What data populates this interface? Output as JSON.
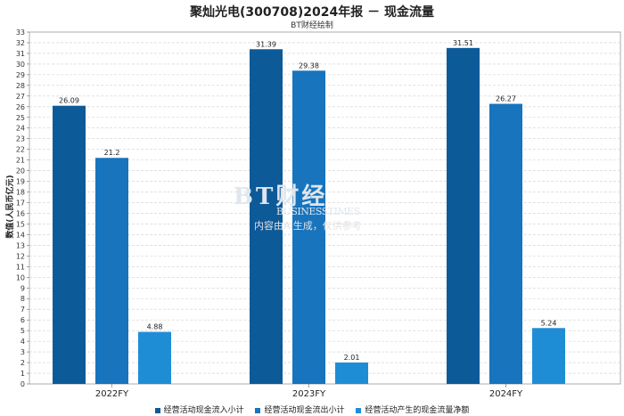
{
  "title": "聚灿光电(300708)2024年报 － 现金流量",
  "subtitle": "BT财经绘制",
  "watermark": {
    "main": "BT财经",
    "sub": "BUSINESSTIMES",
    "note": "内容由AI生成，仅供参考"
  },
  "chart_data": {
    "type": "bar",
    "ylabel": "数值(人民币亿元)",
    "ylim": [
      0,
      33
    ],
    "yticks": [
      0,
      1,
      2,
      3,
      4,
      5,
      6,
      7,
      8,
      9,
      10,
      11,
      12,
      13,
      14,
      15,
      16,
      17,
      18,
      19,
      20,
      21,
      22,
      23,
      24,
      25,
      26,
      27,
      28,
      29,
      30,
      31,
      32,
      33
    ],
    "grid": true,
    "legend_position": "bottom",
    "categories": [
      "2022FY",
      "2023FY",
      "2024FY"
    ],
    "series": [
      {
        "name": "经营活动现金流入小计",
        "color": "#0d5a99",
        "values": [
          26.09,
          31.39,
          31.51
        ],
        "labels": [
          "26.09",
          "31.39",
          "31.51"
        ]
      },
      {
        "name": "经营活动现金流出小计",
        "color": "#1774bd",
        "values": [
          21.2,
          29.38,
          26.27
        ],
        "labels": [
          "21.2",
          "29.38",
          "26.27"
        ]
      },
      {
        "name": "经营活动产生的现金流量净额",
        "color": "#1f8dd6",
        "values": [
          4.88,
          2.01,
          5.24
        ],
        "labels": [
          "4.88",
          "2.01",
          "5.24"
        ]
      }
    ]
  }
}
